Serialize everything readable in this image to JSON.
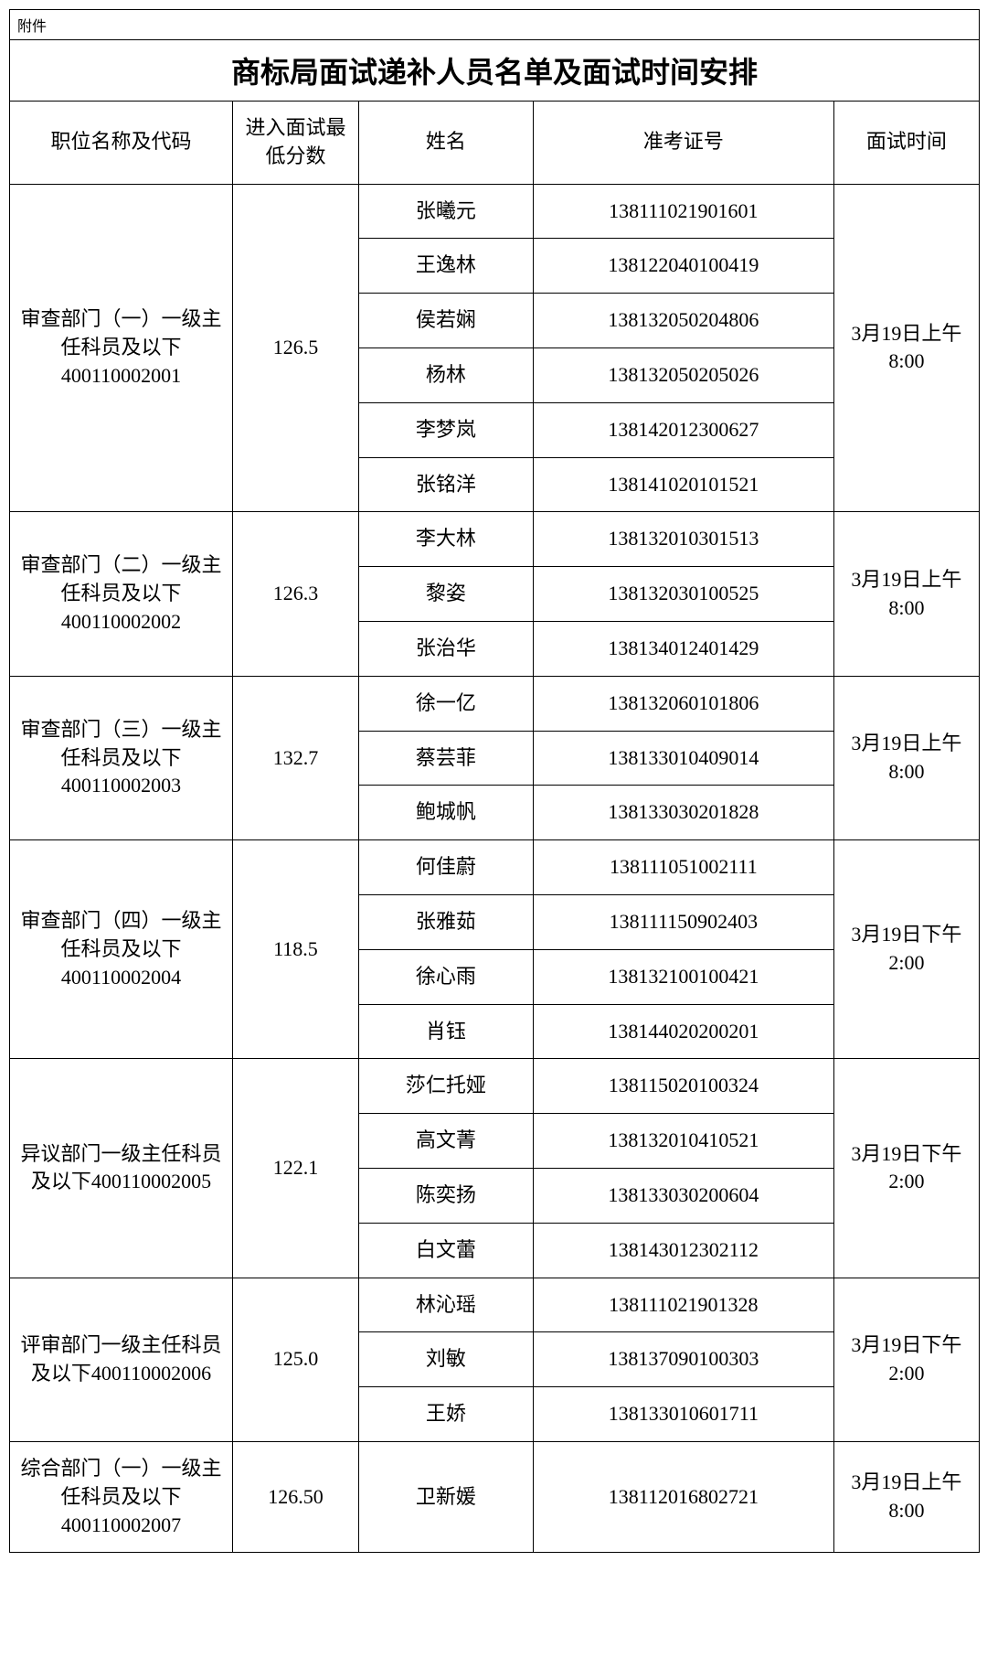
{
  "attachment_label": "附件",
  "title": "商标局面试递补人员名单及面试时间安排",
  "headers": {
    "position": "职位名称及代码",
    "score": "进入面试最低分数",
    "name": "姓名",
    "exam": "准考证号",
    "time": "面试时间"
  },
  "groups": [
    {
      "position": "审查部门（一）一级主任科员及以下400110002001",
      "score": "126.5",
      "time": "3月19日上午8:00",
      "rows": [
        {
          "name": "张曦元",
          "exam": "138111021901601"
        },
        {
          "name": "王逸林",
          "exam": "138122040100419"
        },
        {
          "name": "侯若娴",
          "exam": "138132050204806"
        },
        {
          "name": "杨林",
          "exam": "138132050205026"
        },
        {
          "name": "李梦岚",
          "exam": "138142012300627"
        },
        {
          "name": "张铭洋",
          "exam": "138141020101521"
        }
      ]
    },
    {
      "position": "审查部门（二）一级主任科员及以下400110002002",
      "score": "126.3",
      "time": "3月19日上午8:00",
      "rows": [
        {
          "name": "李大林",
          "exam": "138132010301513"
        },
        {
          "name": "黎姿",
          "exam": "138132030100525"
        },
        {
          "name": "张治华",
          "exam": "138134012401429"
        }
      ]
    },
    {
      "position": "审查部门（三）一级主任科员及以下400110002003",
      "score": "132.7",
      "time": "3月19日上午8:00",
      "rows": [
        {
          "name": "徐一亿",
          "exam": "138132060101806"
        },
        {
          "name": "蔡芸菲",
          "exam": "138133010409014"
        },
        {
          "name": "鲍城帆",
          "exam": "138133030201828"
        }
      ]
    },
    {
      "position": "审查部门（四）一级主任科员及以下400110002004",
      "score": "118.5",
      "time": "3月19日下午2:00",
      "rows": [
        {
          "name": "何佳蔚",
          "exam": "138111051002111"
        },
        {
          "name": "张雅茹",
          "exam": "138111150902403"
        },
        {
          "name": "徐心雨",
          "exam": "138132100100421"
        },
        {
          "name": "肖钰",
          "exam": "138144020200201"
        }
      ]
    },
    {
      "position": "异议部门一级主任科员及以下400110002005",
      "score": "122.1",
      "time": "3月19日下午2:00",
      "rows": [
        {
          "name": "莎仁托娅",
          "exam": "138115020100324"
        },
        {
          "name": "高文菁",
          "exam": "138132010410521"
        },
        {
          "name": "陈奕扬",
          "exam": "138133030200604"
        },
        {
          "name": "白文蕾",
          "exam": "138143012302112"
        }
      ]
    },
    {
      "position": "评审部门一级主任科员及以下400110002006",
      "score": "125.0",
      "time": "3月19日下午2:00",
      "rows": [
        {
          "name": "林沁瑶",
          "exam": "138111021901328"
        },
        {
          "name": "刘敏",
          "exam": "138137090100303"
        },
        {
          "name": "王娇",
          "exam": "138133010601711"
        }
      ]
    },
    {
      "position": "综合部门（一）一级主任科员及以下400110002007",
      "score": "126.50",
      "time": "3月19日上午8:00",
      "rows": [
        {
          "name": "卫新媛",
          "exam": "138112016802721"
        }
      ]
    }
  ]
}
